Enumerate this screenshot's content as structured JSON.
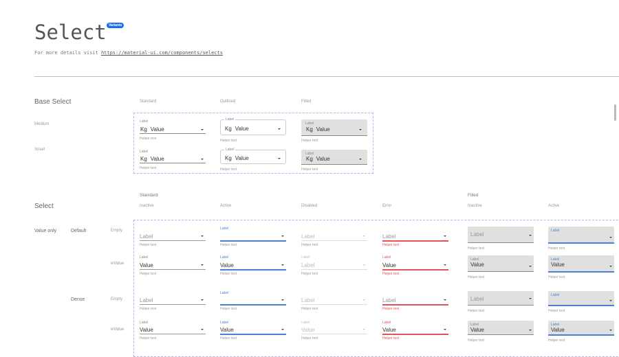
{
  "header": {
    "title": "Select",
    "badge": "Variants",
    "subtitle": "For more details visit ",
    "link": "https://material-ui.com/components/selects"
  },
  "colors": {
    "accent": "#4a7fd6",
    "error": "#e05555",
    "badge": "#1a6fe8",
    "dashed_border": "#b9b2ee"
  },
  "base": {
    "title": "Base Select",
    "columns": [
      "Standard",
      "Outlined",
      "Filled"
    ],
    "rows": [
      {
        "name": "Medium",
        "cells": [
          {
            "label": "Label",
            "prefix": "Kg",
            "value": "Value",
            "helper": "Helper text"
          },
          {
            "label": "Label",
            "prefix": "Kg",
            "value": "Value",
            "helper": "Helper text"
          },
          {
            "label": "Label",
            "prefix": "Kg",
            "value": "Value",
            "helper": "Helper text"
          }
        ]
      },
      {
        "name": "Small",
        "cells": [
          {
            "label": "Label",
            "prefix": "Kg",
            "value": "Value",
            "helper": "Helper text"
          },
          {
            "label": "Label",
            "prefix": "Kg",
            "value": "Value",
            "helper": "Helper text"
          },
          {
            "label": "Label",
            "prefix": "Kg",
            "value": "Value",
            "helper": "Helper text"
          }
        ]
      }
    ]
  },
  "select": {
    "title": "Select",
    "groups": [
      "Standard",
      "Filled"
    ],
    "columns": [
      "Inactive",
      "Active",
      "Disabled",
      "Error",
      "Inactive",
      "Active"
    ],
    "group1": "Value only",
    "subgroups": [
      "Default",
      "Dense"
    ],
    "rows": [
      {
        "name": "Empty",
        "cells": [
          {
            "label": "Label",
            "value": "",
            "helper": "Helper text"
          },
          {
            "label": "Label",
            "value": "",
            "helper": "Helper text"
          },
          {
            "label": "Label",
            "value": "",
            "helper": "Helper text"
          },
          {
            "label": "Label",
            "value": "",
            "helper": "Helper text"
          },
          {
            "label": "Label",
            "value": "",
            "helper": "Helper text"
          },
          {
            "label": "Label",
            "value": "",
            "helper": "Helper text"
          }
        ]
      },
      {
        "name": "wValue",
        "cells": [
          {
            "label": "Label",
            "value": "Value",
            "helper": "Helper text"
          },
          {
            "label": "Label",
            "value": "Value",
            "helper": "Helper text"
          },
          {
            "label": "Label",
            "value": "Label",
            "helper": "Helper text"
          },
          {
            "label": "Label",
            "value": "Value",
            "helper": "Helper text"
          },
          {
            "label": "Label",
            "value": "Value",
            "helper": "Helper text"
          },
          {
            "label": "Label",
            "value": "Value",
            "helper": "Helper text"
          }
        ]
      },
      {
        "name": "Empty",
        "cells": [
          {
            "label": "Label",
            "value": "",
            "helper": "Helper text"
          },
          {
            "label": "Label",
            "value": "",
            "helper": "Helper text"
          },
          {
            "label": "Label",
            "value": "",
            "helper": "Helper text"
          },
          {
            "label": "Label",
            "value": "",
            "helper": "Helper text"
          },
          {
            "label": "Label",
            "value": "",
            "helper": "Helper text"
          },
          {
            "label": "Label",
            "value": "",
            "helper": "Helper text"
          }
        ]
      },
      {
        "name": "wValue",
        "cells": [
          {
            "label": "Label",
            "value": "Value",
            "helper": "Helper text"
          },
          {
            "label": "Label",
            "value": "Value",
            "helper": "Helper text"
          },
          {
            "label": "Label",
            "value": "Value",
            "helper": "Helper text"
          },
          {
            "label": "Label",
            "value": "Value",
            "helper": "Helper text"
          },
          {
            "label": "Label",
            "value": "Value",
            "helper": "Helper text"
          },
          {
            "label": "Label",
            "value": "Value",
            "helper": "Helper text"
          }
        ]
      }
    ]
  }
}
